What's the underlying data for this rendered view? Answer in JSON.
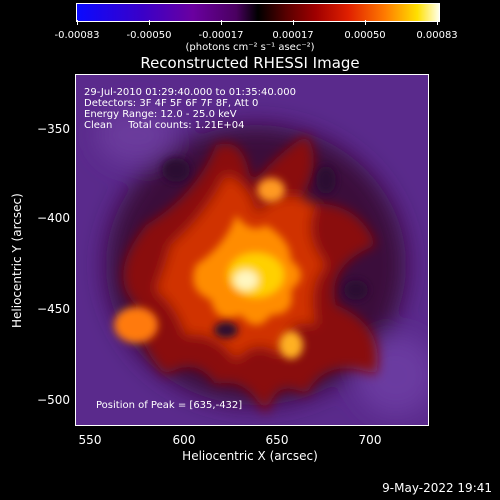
{
  "colorbar": {
    "ticks": [
      "-0.00083",
      "-0.00050",
      "-0.00017",
      "0.00017",
      "0.00050",
      "0.00083"
    ],
    "units": "(photons cm⁻² s⁻¹ asec⁻²)"
  },
  "title": "Reconstructed RHESSI Image",
  "info": {
    "line1": "29-Jul-2010 01:29:40.000 to 01:35:40.000",
    "line2": "Detectors: 3F 4F 5F 6F 7F 8F, Att 0",
    "line3": "Energy Range: 12.0 - 25.0 keV",
    "line4": "Clean     Total counts: 1.21E+04",
    "peak": "Position of Peak = [635,-432]"
  },
  "axes": {
    "ylabel": "Heliocentric Y (arcsec)",
    "xlabel": "Heliocentric X (arcsec)",
    "yticks": [
      "−350",
      "−400",
      "−450",
      "−500"
    ],
    "xticks": [
      "550",
      "600",
      "650",
      "700"
    ]
  },
  "timestamp": "9-May-2022 19:41"
}
